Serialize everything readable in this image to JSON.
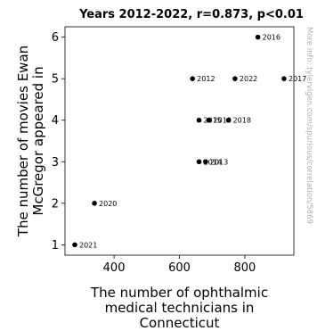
{
  "chart_data": {
    "type": "scatter",
    "title": "Years 2012-2022, r=0.873, p<0.01",
    "xlabel": [
      "The number of ophthalmic",
      "medical technicians in",
      "Connecticut"
    ],
    "ylabel": [
      "The number of movies Ewan",
      "McGregor appeared in"
    ],
    "xlim": [
      250,
      950
    ],
    "ylim": [
      0.75,
      6.25
    ],
    "xticks": [
      400,
      600,
      800
    ],
    "yticks": [
      1,
      2,
      3,
      4,
      5,
      6
    ],
    "grid": false,
    "points": [
      {
        "label": "2012",
        "x": 640,
        "y": 5
      },
      {
        "label": "2013",
        "x": 680,
        "y": 3
      },
      {
        "label": "2014",
        "x": 660,
        "y": 3
      },
      {
        "label": "2015",
        "x": 660,
        "y": 4
      },
      {
        "label": "2016",
        "x": 840,
        "y": 6
      },
      {
        "label": "2017",
        "x": 920,
        "y": 5
      },
      {
        "label": "2018",
        "x": 750,
        "y": 4
      },
      {
        "label": "2019",
        "x": 690,
        "y": 4
      },
      {
        "label": "2020",
        "x": 340,
        "y": 2
      },
      {
        "label": "2021",
        "x": 280,
        "y": 1
      },
      {
        "label": "2022",
        "x": 770,
        "y": 5
      }
    ],
    "watermark": "More info: tylervigen.com/spurious/correlation/5869"
  }
}
